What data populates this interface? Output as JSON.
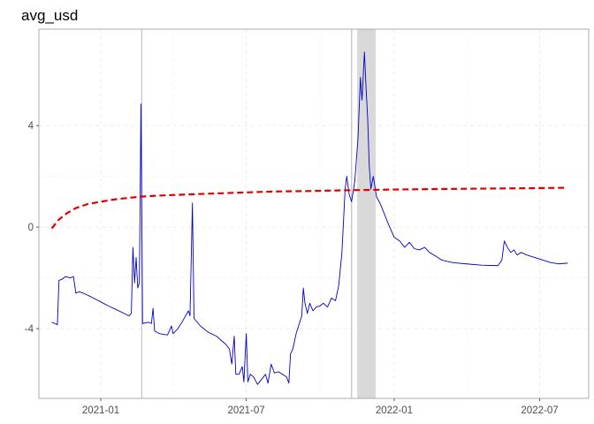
{
  "chart_data": {
    "type": "line",
    "title": "avg_usd",
    "xlabel": "",
    "ylabel": "",
    "xlim": [
      "2020-10-16",
      "2022-08-31"
    ],
    "ylim": [
      -6.75,
      7.8
    ],
    "grid": true,
    "legend": "none",
    "x_ticks": [
      {
        "date": "2021-01-01",
        "label": "2021-01"
      },
      {
        "date": "2021-07-01",
        "label": "2021-07"
      },
      {
        "date": "2022-01-01",
        "label": "2022-01"
      },
      {
        "date": "2022-07-01",
        "label": "2022-07"
      }
    ],
    "y_ticks": [
      {
        "value": -4,
        "label": "-4"
      },
      {
        "value": 0,
        "label": "0"
      },
      {
        "value": 4,
        "label": "4"
      }
    ],
    "vertical_lines": [
      "2021-02-21",
      "2021-11-09"
    ],
    "shaded_region": [
      "2021-11-16",
      "2021-12-09"
    ],
    "colors": {
      "series_blue": "#0000cc",
      "series_red": "#e00000",
      "shade": "#d9d9d9",
      "vline": "#c8c8c8"
    },
    "series": [
      {
        "style": "solid",
        "color": "#0000cc",
        "points": [
          [
            "2020-11-01",
            -3.75
          ],
          [
            "2020-11-05",
            -3.8
          ],
          [
            "2020-11-08",
            -3.85
          ],
          [
            "2020-11-10",
            -2.1
          ],
          [
            "2020-11-14",
            -2.05
          ],
          [
            "2020-11-18",
            -1.95
          ],
          [
            "2020-11-24",
            -2.0
          ],
          [
            "2020-11-28",
            -1.95
          ],
          [
            "2020-12-01",
            -2.6
          ],
          [
            "2020-12-05",
            -2.55
          ],
          [
            "2020-12-10",
            -2.6
          ],
          [
            "2020-12-20",
            -2.75
          ],
          [
            "2021-01-01",
            -2.95
          ],
          [
            "2021-01-10",
            -3.1
          ],
          [
            "2021-01-20",
            -3.25
          ],
          [
            "2021-01-30",
            -3.4
          ],
          [
            "2021-02-05",
            -3.5
          ],
          [
            "2021-02-08",
            -3.4
          ],
          [
            "2021-02-10",
            -0.8
          ],
          [
            "2021-02-12",
            -2.2
          ],
          [
            "2021-02-14",
            -1.2
          ],
          [
            "2021-02-16",
            -2.4
          ],
          [
            "2021-02-18",
            -2.2
          ],
          [
            "2021-02-20",
            4.85
          ],
          [
            "2021-02-22",
            -3.8
          ],
          [
            "2021-03-01",
            -3.75
          ],
          [
            "2021-03-05",
            -3.8
          ],
          [
            "2021-03-07",
            -3.2
          ],
          [
            "2021-03-09",
            -4.1
          ],
          [
            "2021-03-15",
            -4.2
          ],
          [
            "2021-03-25",
            -4.25
          ],
          [
            "2021-03-30",
            -3.9
          ],
          [
            "2021-04-01",
            -4.2
          ],
          [
            "2021-04-07",
            -4.0
          ],
          [
            "2021-04-12",
            -3.75
          ],
          [
            "2021-04-20",
            -3.3
          ],
          [
            "2021-04-22",
            -3.5
          ],
          [
            "2021-04-25",
            0.95
          ],
          [
            "2021-04-27",
            -3.6
          ],
          [
            "2021-05-05",
            -3.9
          ],
          [
            "2021-05-15",
            -4.15
          ],
          [
            "2021-05-25",
            -4.3
          ],
          [
            "2021-06-01",
            -4.5
          ],
          [
            "2021-06-05",
            -4.6
          ],
          [
            "2021-06-10",
            -4.8
          ],
          [
            "2021-06-13",
            -5.4
          ],
          [
            "2021-06-16",
            -4.3
          ],
          [
            "2021-06-18",
            -5.8
          ],
          [
            "2021-06-22",
            -5.8
          ],
          [
            "2021-06-26",
            -5.5
          ],
          [
            "2021-06-28",
            -6.1
          ],
          [
            "2021-07-01",
            -4.2
          ],
          [
            "2021-07-03",
            -6.1
          ],
          [
            "2021-07-06",
            -5.8
          ],
          [
            "2021-07-10",
            -5.9
          ],
          [
            "2021-07-15",
            -6.2
          ],
          [
            "2021-07-20",
            -6.0
          ],
          [
            "2021-07-25",
            -5.8
          ],
          [
            "2021-07-28",
            -6.15
          ],
          [
            "2021-08-01",
            -5.4
          ],
          [
            "2021-08-05",
            -5.75
          ],
          [
            "2021-08-10",
            -5.7
          ],
          [
            "2021-08-15",
            -5.8
          ],
          [
            "2021-08-20",
            -5.9
          ],
          [
            "2021-08-23",
            -6.15
          ],
          [
            "2021-08-25",
            -5.0
          ],
          [
            "2021-08-28",
            -4.8
          ],
          [
            "2021-09-01",
            -4.2
          ],
          [
            "2021-09-05",
            -3.8
          ],
          [
            "2021-09-08",
            -3.5
          ],
          [
            "2021-09-10",
            -2.4
          ],
          [
            "2021-09-12",
            -3.0
          ],
          [
            "2021-09-15",
            -3.4
          ],
          [
            "2021-09-18",
            -3.0
          ],
          [
            "2021-09-22",
            -3.3
          ],
          [
            "2021-09-26",
            -3.15
          ],
          [
            "2021-10-01",
            -3.1
          ],
          [
            "2021-10-05",
            -3.0
          ],
          [
            "2021-10-10",
            -3.15
          ],
          [
            "2021-10-15",
            -2.8
          ],
          [
            "2021-10-20",
            -2.9
          ],
          [
            "2021-10-24",
            -2.3
          ],
          [
            "2021-10-28",
            -1.0
          ],
          [
            "2021-11-01",
            1.5
          ],
          [
            "2021-11-03",
            2.0
          ],
          [
            "2021-11-06",
            1.3
          ],
          [
            "2021-11-09",
            1.0
          ],
          [
            "2021-11-13",
            1.8
          ],
          [
            "2021-11-17",
            3.5
          ],
          [
            "2021-11-20",
            5.9
          ],
          [
            "2021-11-22",
            5.0
          ],
          [
            "2021-11-25",
            6.9
          ],
          [
            "2021-11-27",
            5.5
          ],
          [
            "2021-11-29",
            4.3
          ],
          [
            "2021-12-01",
            2.4
          ],
          [
            "2021-12-03",
            1.5
          ],
          [
            "2021-12-06",
            2.0
          ],
          [
            "2021-12-10",
            1.2
          ],
          [
            "2021-12-15",
            0.9
          ],
          [
            "2021-12-20",
            0.5
          ],
          [
            "2021-12-25",
            0.1
          ],
          [
            "2022-01-01",
            -0.4
          ],
          [
            "2022-01-08",
            -0.55
          ],
          [
            "2022-01-14",
            -0.8
          ],
          [
            "2022-01-20",
            -0.6
          ],
          [
            "2022-01-26",
            -0.85
          ],
          [
            "2022-02-01",
            -0.9
          ],
          [
            "2022-02-08",
            -0.8
          ],
          [
            "2022-02-14",
            -1.0
          ],
          [
            "2022-02-22",
            -1.15
          ],
          [
            "2022-03-01",
            -1.3
          ],
          [
            "2022-03-15",
            -1.4
          ],
          [
            "2022-04-01",
            -1.45
          ],
          [
            "2022-04-20",
            -1.5
          ],
          [
            "2022-05-10",
            -1.52
          ],
          [
            "2022-05-15",
            -1.3
          ],
          [
            "2022-05-18",
            -0.55
          ],
          [
            "2022-05-22",
            -0.8
          ],
          [
            "2022-05-26",
            -1.0
          ],
          [
            "2022-05-30",
            -0.9
          ],
          [
            "2022-06-03",
            -1.1
          ],
          [
            "2022-06-08",
            -1.0
          ],
          [
            "2022-06-15",
            -1.1
          ],
          [
            "2022-06-25",
            -1.2
          ],
          [
            "2022-07-05",
            -1.3
          ],
          [
            "2022-07-15",
            -1.4
          ],
          [
            "2022-07-25",
            -1.45
          ],
          [
            "2022-08-05",
            -1.42
          ]
        ]
      },
      {
        "style": "dashed",
        "color": "#e00000",
        "points": [
          [
            "2020-11-01",
            -0.05
          ],
          [
            "2020-11-10",
            0.3
          ],
          [
            "2020-11-20",
            0.55
          ],
          [
            "2020-12-01",
            0.75
          ],
          [
            "2020-12-15",
            0.9
          ],
          [
            "2021-01-01",
            1.0
          ],
          [
            "2021-01-20",
            1.1
          ],
          [
            "2021-02-20",
            1.2
          ],
          [
            "2021-03-20",
            1.25
          ],
          [
            "2021-05-01",
            1.3
          ],
          [
            "2021-06-15",
            1.35
          ],
          [
            "2021-08-01",
            1.4
          ],
          [
            "2021-09-15",
            1.42
          ],
          [
            "2021-11-01",
            1.45
          ],
          [
            "2022-01-01",
            1.48
          ],
          [
            "2022-03-01",
            1.5
          ],
          [
            "2022-05-01",
            1.52
          ],
          [
            "2022-06-15",
            1.53
          ],
          [
            "2022-08-05",
            1.55
          ]
        ]
      }
    ]
  }
}
